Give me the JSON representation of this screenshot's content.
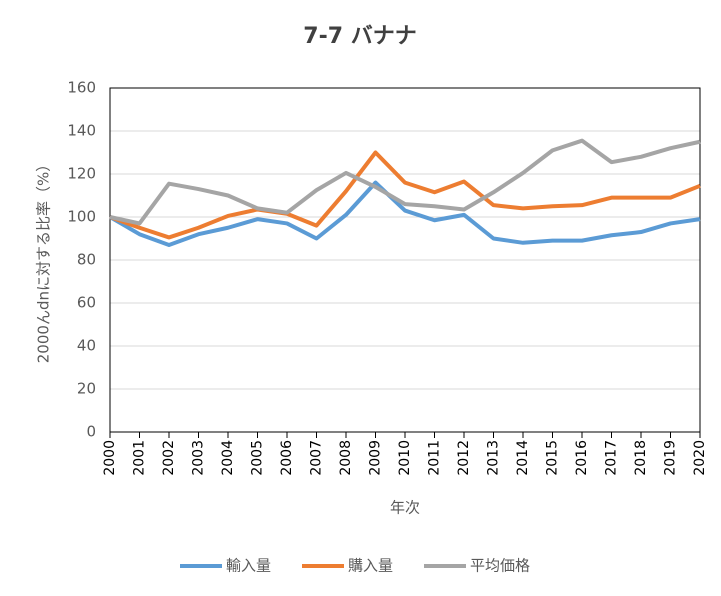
{
  "chart_data": {
    "type": "line",
    "title": "7-7 バナナ",
    "y_label": "2000んdnに対する比率（%）",
    "x_label": "年次",
    "categories": [
      "2000",
      "2001",
      "2002",
      "2003",
      "2004",
      "2005",
      "2006",
      "2007",
      "2008",
      "2009",
      "2010",
      "2011",
      "2012",
      "2013",
      "2014",
      "2015",
      "2016",
      "2017",
      "2018",
      "2019",
      "2020"
    ],
    "series": [
      {
        "name": "輸入量",
        "color": "#5b9bd5",
        "values": [
          100,
          92,
          87,
          92,
          95,
          99,
          97,
          90,
          101,
          116,
          103,
          98.5,
          101,
          90,
          88,
          89,
          89,
          91.5,
          93,
          97,
          99
        ]
      },
      {
        "name": "購入量",
        "color": "#ed7d31",
        "values": [
          100,
          95,
          90.5,
          95,
          100.5,
          103.5,
          101.5,
          96,
          112,
          130,
          116,
          111.5,
          116.5,
          105.5,
          104,
          105,
          105.5,
          109,
          109,
          109,
          114.5
        ]
      },
      {
        "name": "平均価格",
        "color": "#a5a5a5",
        "values": [
          100,
          97,
          115.5,
          113,
          110,
          104,
          102,
          112.5,
          120.5,
          114,
          106,
          105,
          103.5,
          111.5,
          120.5,
          131,
          135.5,
          125.5,
          128,
          132,
          135
        ]
      }
    ],
    "ylim": [
      0,
      160
    ],
    "yticks": [
      0,
      20,
      40,
      60,
      80,
      100,
      120,
      140,
      160
    ],
    "grid": true,
    "legend": "bottom"
  }
}
